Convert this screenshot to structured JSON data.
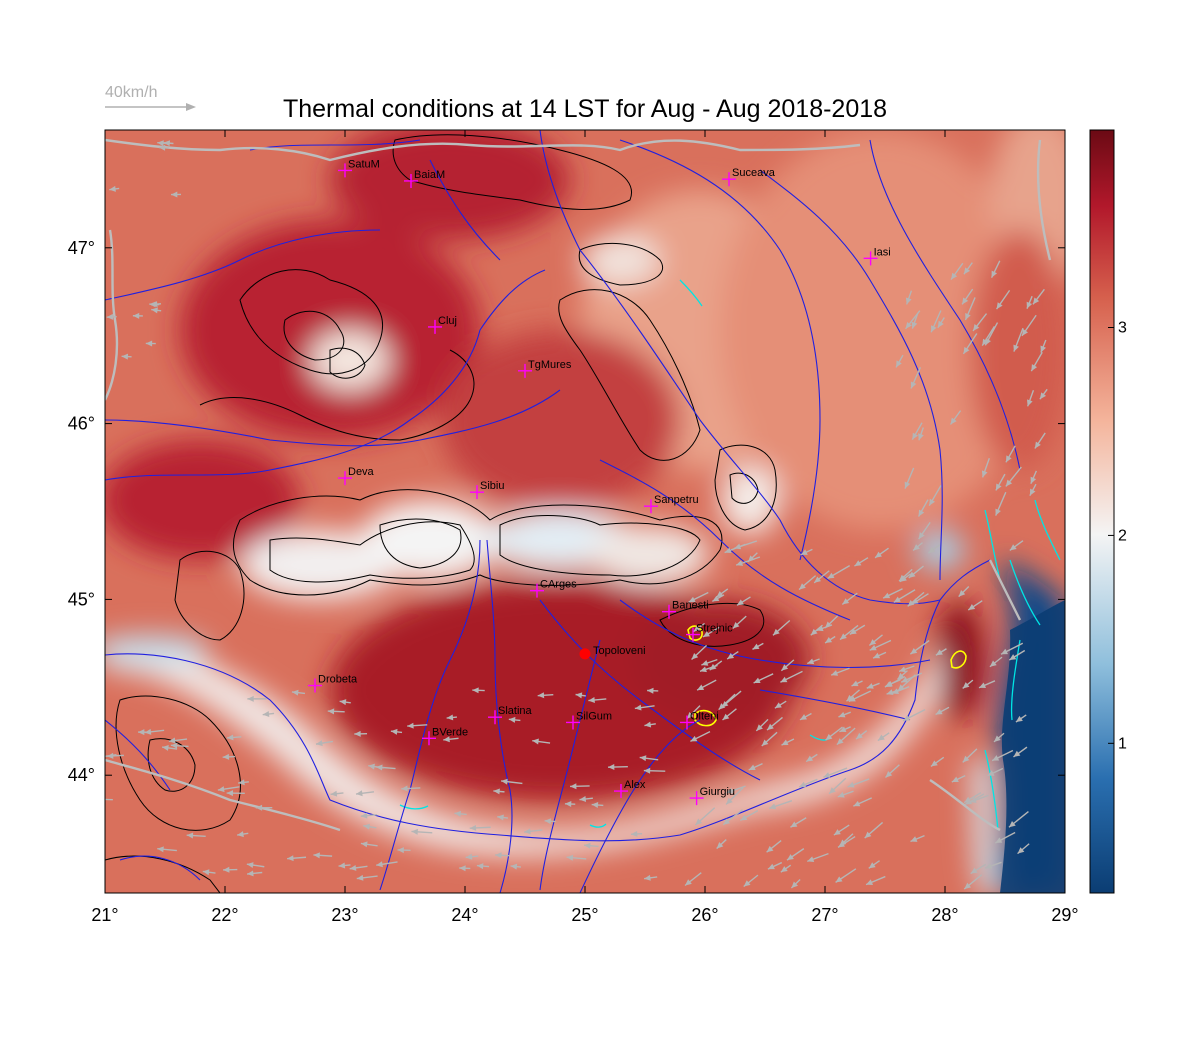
{
  "title": "Thermal conditions at 14 LST for Aug - Aug  2018-2018",
  "wind_reference": {
    "label": "40km/h"
  },
  "colors": {
    "low": "#0b3d73",
    "mid": "#f4f4f4",
    "high": "#6b0a14",
    "rivers": "#2020e0",
    "borders": "#bdbdbd",
    "contours": "#000000",
    "city_marker": "#ff00ff",
    "highlight_contour": "#ffff00",
    "coast_contour": "#00e5e5",
    "wind_arrows": "#b5b5b5",
    "focus_point": "#ff0000"
  },
  "map": {
    "lon_ticks": [
      "21°",
      "22°",
      "23°",
      "24°",
      "25°",
      "26°",
      "27°",
      "28°",
      "29°"
    ],
    "lat_ticks": [
      "44°",
      "45°",
      "46°",
      "47°"
    ],
    "lon_range": [
      21,
      29
    ],
    "lat_range": [
      43.33,
      47.67
    ],
    "cities": [
      {
        "name": "SatuM",
        "lon": 23.0,
        "lat": 47.44
      },
      {
        "name": "BaiaM",
        "lon": 23.55,
        "lat": 47.38
      },
      {
        "name": "Suceava",
        "lon": 26.2,
        "lat": 47.39
      },
      {
        "name": "Iasi",
        "lon": 27.38,
        "lat": 46.94
      },
      {
        "name": "Cluj",
        "lon": 23.75,
        "lat": 46.55
      },
      {
        "name": "TgMures",
        "lon": 24.5,
        "lat": 46.3
      },
      {
        "name": "Deva",
        "lon": 23.0,
        "lat": 45.69
      },
      {
        "name": "Sibiu",
        "lon": 24.1,
        "lat": 45.61
      },
      {
        "name": "Sanpetru",
        "lon": 25.55,
        "lat": 45.53
      },
      {
        "name": "CArges",
        "lon": 24.6,
        "lat": 45.05
      },
      {
        "name": "Banesti",
        "lon": 25.7,
        "lat": 44.93
      },
      {
        "name": "Strejnic",
        "lon": 25.9,
        "lat": 44.8
      },
      {
        "name": "Drobeta",
        "lon": 22.75,
        "lat": 44.51
      },
      {
        "name": "Slatina",
        "lon": 24.25,
        "lat": 44.33
      },
      {
        "name": "SilGum",
        "lon": 24.9,
        "lat": 44.3
      },
      {
        "name": "Olteni",
        "lon": 25.85,
        "lat": 44.3
      },
      {
        "name": "BVerde",
        "lon": 23.7,
        "lat": 44.21
      },
      {
        "name": "Alex",
        "lon": 25.3,
        "lat": 43.91
      },
      {
        "name": "Giurgiu",
        "lon": 25.93,
        "lat": 43.87
      }
    ],
    "focus_point": {
      "name": "Topoloveni",
      "lon": 25.0,
      "lat": 44.69
    }
  },
  "colorbar": {
    "ticks": [
      {
        "value": 1,
        "label": "1"
      },
      {
        "value": 2,
        "label": "2"
      },
      {
        "value": 3,
        "label": "3"
      }
    ],
    "range": [
      0.28,
      3.95
    ]
  }
}
